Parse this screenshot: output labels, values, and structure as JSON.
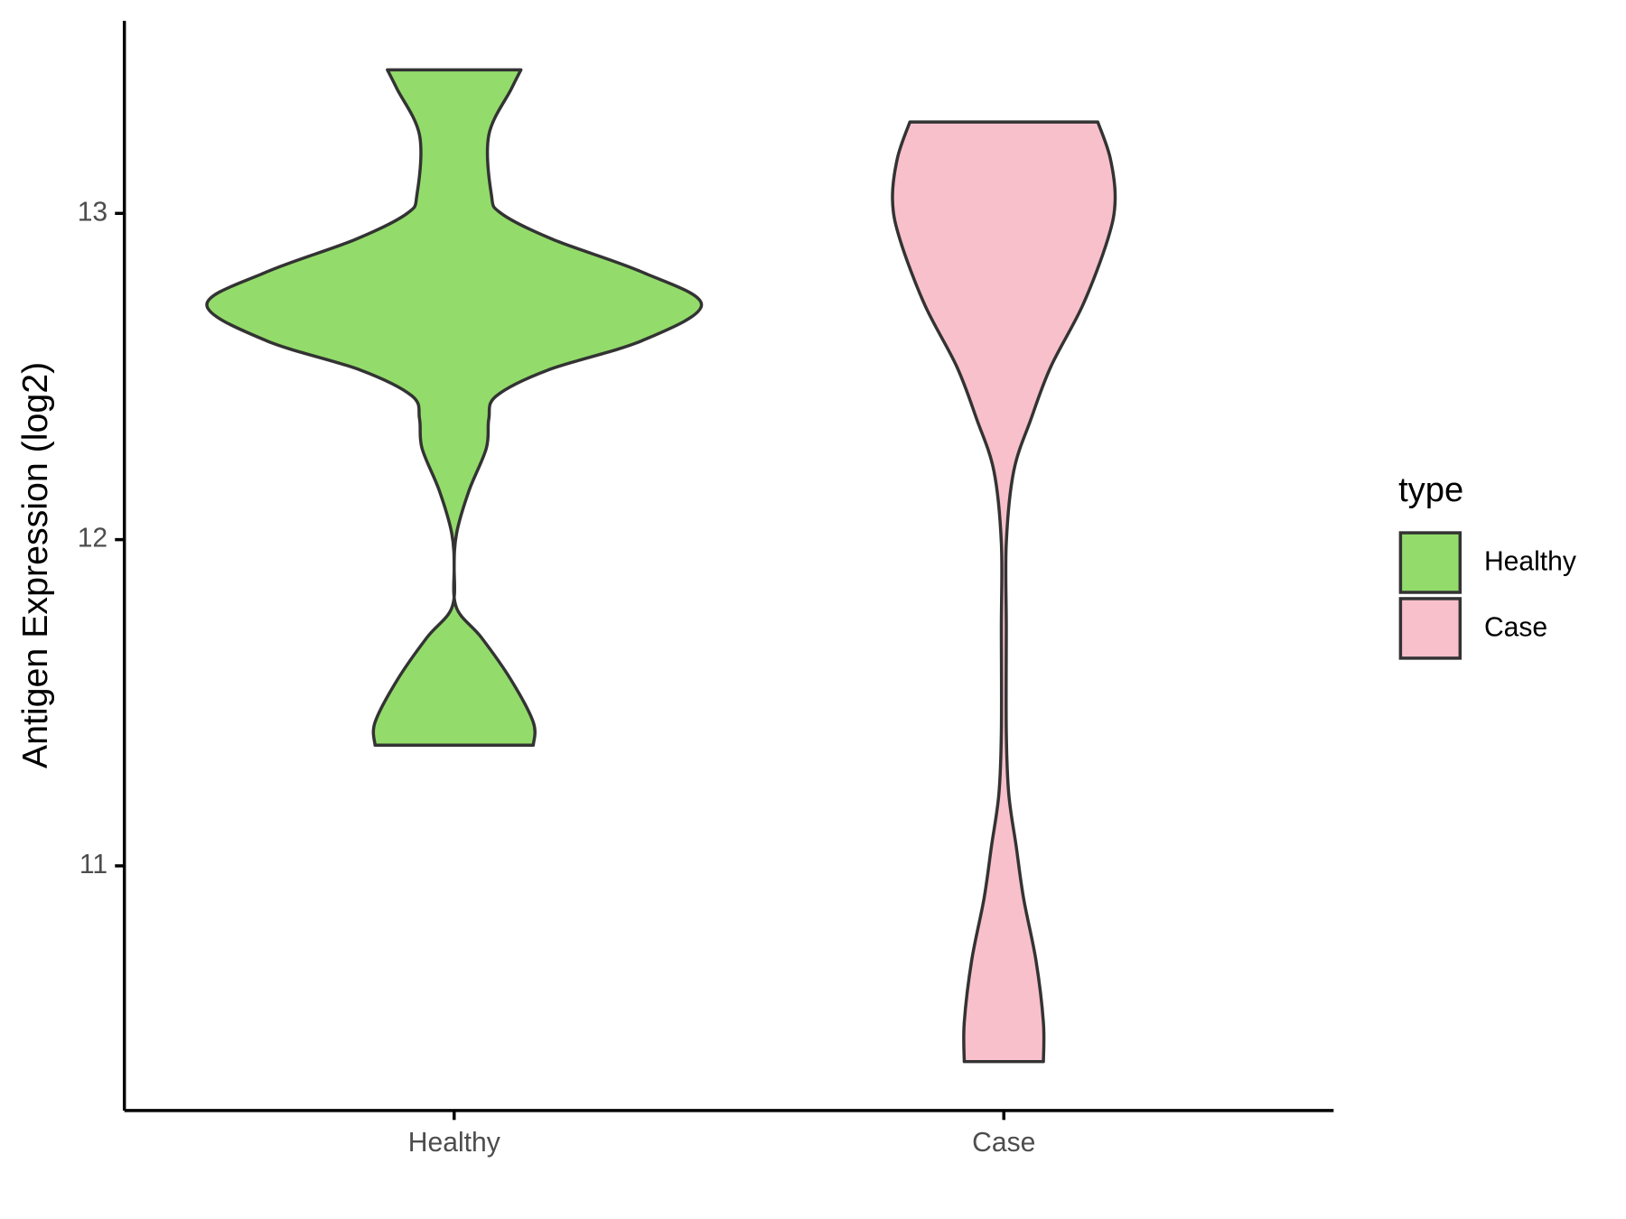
{
  "chart_data": {
    "type": "violin",
    "y_label": "Antigen Expression (log2)",
    "categories": [
      "Healthy",
      "Case"
    ],
    "ylim": [
      10.25,
      13.59
    ],
    "yticks": [
      11,
      12,
      13
    ],
    "legend_title": "type",
    "legend_position": "right",
    "series": [
      {
        "name": "Healthy",
        "color": "#93dc6b",
        "y": [
          13.44,
          13.38,
          13.24,
          13.06,
          13.0,
          12.92,
          12.82,
          12.72,
          12.61,
          12.52,
          12.44,
          12.37,
          12.28,
          12.15,
          12.02,
          11.91,
          11.79,
          11.7,
          11.57,
          11.44,
          11.37
        ],
        "density": [
          0.27,
          0.23,
          0.14,
          0.15,
          0.19,
          0.4,
          0.76,
          1.0,
          0.76,
          0.38,
          0.17,
          0.14,
          0.13,
          0.06,
          0.01,
          0.0,
          0.01,
          0.11,
          0.23,
          0.32,
          0.32
        ]
      },
      {
        "name": "Case",
        "color": "#f8c0cb",
        "y": [
          13.28,
          13.17,
          13.04,
          12.92,
          12.72,
          12.53,
          12.37,
          12.21,
          11.99,
          11.73,
          11.41,
          11.22,
          11.06,
          10.9,
          10.71,
          10.52,
          10.4
        ],
        "density": [
          0.38,
          0.43,
          0.45,
          0.42,
          0.32,
          0.19,
          0.11,
          0.04,
          0.01,
          0.01,
          0.01,
          0.02,
          0.05,
          0.08,
          0.13,
          0.16,
          0.16
        ]
      }
    ]
  }
}
